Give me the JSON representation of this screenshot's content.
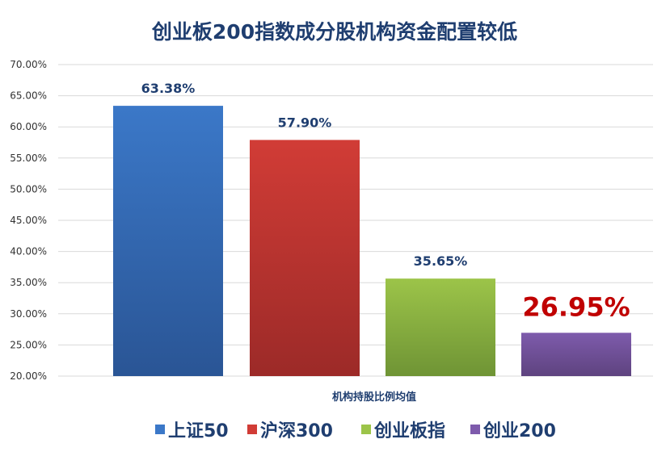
{
  "chart_data": {
    "type": "bar",
    "title": "创业板200指数成分股机构资金配置较低",
    "xlabel": "机构持股比例均值",
    "ylabel": "",
    "ylim": [
      20,
      70
    ],
    "yticks": [
      "20.00%",
      "25.00%",
      "30.00%",
      "35.00%",
      "40.00%",
      "45.00%",
      "50.00%",
      "55.00%",
      "60.00%",
      "65.00%",
      "70.00%"
    ],
    "categories": [
      ""
    ],
    "series": [
      {
        "name": "上证50",
        "values": [
          63.38
        ],
        "label": "63.38%",
        "color": "#3b78c8",
        "color_dark": "#2a5595"
      },
      {
        "name": "沪深300",
        "values": [
          57.9
        ],
        "label": "57.90%",
        "color": "#d13c36",
        "color_dark": "#9c2a28"
      },
      {
        "name": "创业板指",
        "values": [
          35.65
        ],
        "label": "35.65%",
        "color": "#9cc449",
        "color_dark": "#6f9435"
      },
      {
        "name": "创业200",
        "values": [
          26.95
        ],
        "label": "26.95%",
        "color": "#7e5bac",
        "color_dark": "#5e437f",
        "highlight": true
      }
    ],
    "grid": true,
    "legend": "bottom"
  }
}
